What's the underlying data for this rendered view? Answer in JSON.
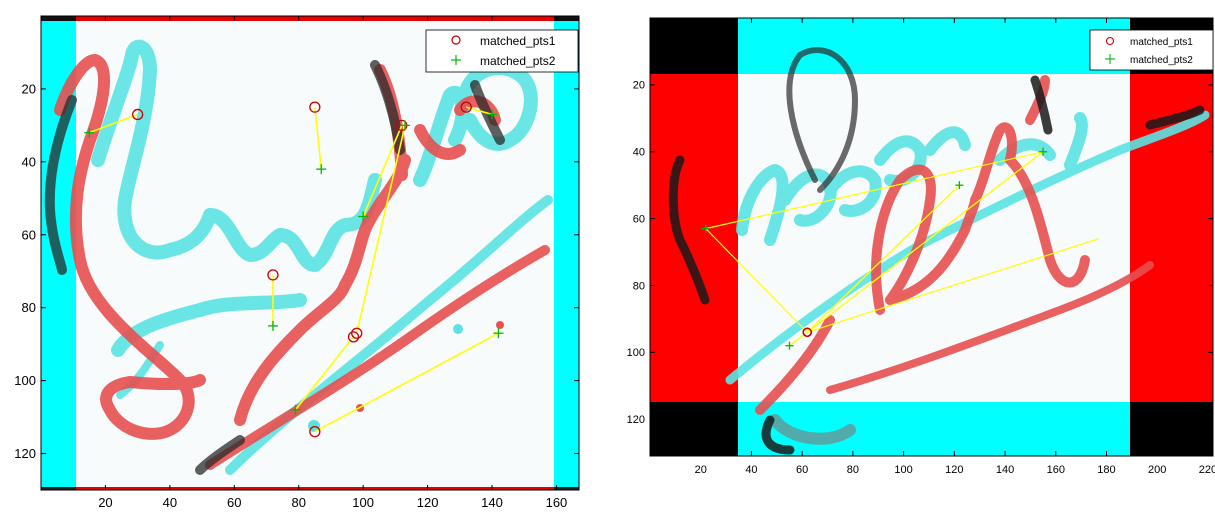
{
  "chart_data": [
    {
      "type": "scatter",
      "title": "",
      "xlabel": "",
      "ylabel": "",
      "xlim": [
        0,
        167
      ],
      "ylim": [
        130,
        0
      ],
      "y_reversed": true,
      "grid": false,
      "legend_position": "top-right",
      "x_ticks": [
        20,
        40,
        60,
        80,
        100,
        120,
        140,
        160
      ],
      "y_ticks": [
        20,
        40,
        60,
        80,
        100,
        120
      ],
      "background_colors": {
        "frame": "#ff0000",
        "border": "#00ffff",
        "paper": "#f7fbfb",
        "ink_red": "#e85050",
        "ink_cyan": "#5be3e3"
      },
      "legend": [
        {
          "label": "matched_pts1",
          "marker": "circle",
          "color": "#cc0000"
        },
        {
          "label": "matched_pts2",
          "marker": "plus",
          "color": "#00bb00"
        }
      ],
      "series": [
        {
          "name": "matched_pts1",
          "marker": "circle",
          "x": [
            30,
            85,
            112,
            132,
            72,
            98,
            97,
            85
          ],
          "y": [
            27,
            25,
            30,
            25,
            71,
            87,
            88,
            114
          ]
        },
        {
          "name": "matched_pts2",
          "marker": "plus",
          "x": [
            15,
            87,
            100,
            140,
            72,
            113,
            79,
            142
          ],
          "y": [
            32,
            42,
            55,
            27,
            85,
            30,
            108,
            87
          ]
        }
      ],
      "match_line_color": "#ffff00"
    },
    {
      "type": "scatter",
      "title": "",
      "xlabel": "",
      "ylabel": "",
      "xlim": [
        0,
        222
      ],
      "ylim": [
        131,
        0
      ],
      "y_reversed": true,
      "grid": false,
      "legend_position": "top-right",
      "x_ticks": [
        20,
        40,
        60,
        80,
        100,
        120,
        140,
        160,
        180,
        200,
        220
      ],
      "y_ticks": [
        20,
        40,
        60,
        80,
        100,
        120
      ],
      "background_colors": {
        "frame": "#ff0000",
        "border": "#00ffff",
        "paper": "#f7fbfb",
        "ink_red": "#e85050",
        "ink_cyan": "#5be3e3"
      },
      "legend": [
        {
          "label": "matched_pts1",
          "marker": "circle",
          "color": "#cc0000"
        },
        {
          "label": "matched_pts2",
          "marker": "plus",
          "color": "#00bb00"
        }
      ],
      "series": [
        {
          "name": "matched_pts1",
          "marker": "circle",
          "x": [
            62,
            62,
            62,
            62
          ],
          "y": [
            94,
            94,
            94,
            94
          ]
        },
        {
          "name": "matched_pts2",
          "marker": "plus",
          "x": [
            22,
            55,
            122,
            155
          ],
          "y": [
            63,
            98,
            50,
            40
          ]
        }
      ],
      "extra_lines": [
        {
          "x": [
            22,
            155
          ],
          "y": [
            63,
            40
          ]
        },
        {
          "x": [
            62,
            155
          ],
          "y": [
            94,
            40
          ]
        },
        {
          "x": [
            62,
            177
          ],
          "y": [
            94,
            66
          ]
        },
        {
          "x": [
            62,
            122
          ],
          "y": [
            94,
            50
          ]
        },
        {
          "x": [
            62,
            55
          ],
          "y": [
            94,
            98
          ]
        }
      ],
      "match_line_color": "#ffff00"
    }
  ]
}
